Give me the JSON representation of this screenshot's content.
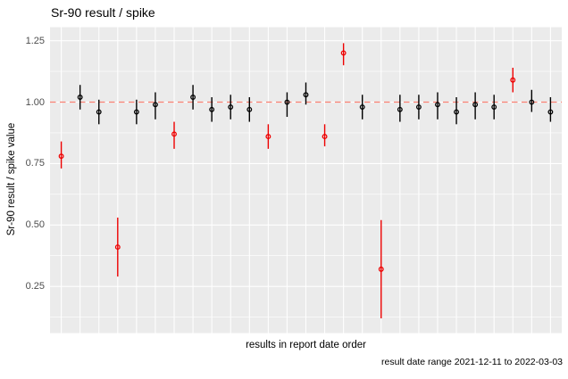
{
  "title": "Sr-90 result / spike",
  "caption": "result date range 2021-12-11 to 2022-03-03",
  "colors": {
    "panel_bg": "#EBEBEB",
    "grid": "#FFFFFF",
    "reference_line": "#FA8072",
    "normal_point": "#000000",
    "flagged_point": "#EE0000",
    "tick_label": "#4D4D4D"
  },
  "chart_data": {
    "type": "scatter",
    "subtype": "pointrange-with-error-bars",
    "title": "Sr-90 result / spike",
    "xlabel": "results in report date order",
    "ylabel": "Sr-90 result / spike value",
    "caption": "result date range 2021-12-11 to 2022-03-03",
    "ylim": [
      0.06,
      1.305
    ],
    "yticks": [
      0.25,
      0.5,
      0.75,
      1.0,
      1.25
    ],
    "ytick_labels": [
      "0.25",
      "0.50",
      "0.75",
      "1.00",
      "1.25"
    ],
    "yticks_minor": [
      0.125,
      0.375,
      0.625,
      0.875,
      1.125
    ],
    "x_axis": "discrete index 1-27, one vertical gridline per result, no x tick labels",
    "grid": "on",
    "legend": "none",
    "reference_line": {
      "y": 1.0,
      "style": "dashed",
      "color": "#FA8072"
    },
    "points": [
      {
        "i": 1,
        "value": 0.78,
        "lo": 0.73,
        "hi": 0.84,
        "flag": "red"
      },
      {
        "i": 2,
        "value": 1.02,
        "lo": 0.97,
        "hi": 1.07,
        "flag": "black"
      },
      {
        "i": 3,
        "value": 0.96,
        "lo": 0.91,
        "hi": 1.01,
        "flag": "black"
      },
      {
        "i": 4,
        "value": 0.41,
        "lo": 0.29,
        "hi": 0.53,
        "flag": "red"
      },
      {
        "i": 5,
        "value": 0.96,
        "lo": 0.91,
        "hi": 1.01,
        "flag": "black"
      },
      {
        "i": 6,
        "value": 0.99,
        "lo": 0.93,
        "hi": 1.04,
        "flag": "black"
      },
      {
        "i": 7,
        "value": 0.87,
        "lo": 0.81,
        "hi": 0.92,
        "flag": "red"
      },
      {
        "i": 8,
        "value": 1.02,
        "lo": 0.97,
        "hi": 1.07,
        "flag": "black"
      },
      {
        "i": 9,
        "value": 0.97,
        "lo": 0.92,
        "hi": 1.02,
        "flag": "black"
      },
      {
        "i": 10,
        "value": 0.98,
        "lo": 0.93,
        "hi": 1.03,
        "flag": "black"
      },
      {
        "i": 11,
        "value": 0.97,
        "lo": 0.92,
        "hi": 1.02,
        "flag": "black"
      },
      {
        "i": 12,
        "value": 0.86,
        "lo": 0.81,
        "hi": 0.91,
        "flag": "red"
      },
      {
        "i": 13,
        "value": 1.0,
        "lo": 0.94,
        "hi": 1.04,
        "flag": "black"
      },
      {
        "i": 14,
        "value": 1.03,
        "lo": 0.99,
        "hi": 1.08,
        "flag": "black"
      },
      {
        "i": 15,
        "value": 0.86,
        "lo": 0.82,
        "hi": 0.91,
        "flag": "red"
      },
      {
        "i": 16,
        "value": 1.2,
        "lo": 1.15,
        "hi": 1.24,
        "flag": "red"
      },
      {
        "i": 17,
        "value": 0.98,
        "lo": 0.93,
        "hi": 1.03,
        "flag": "black"
      },
      {
        "i": 18,
        "value": 0.32,
        "lo": 0.12,
        "hi": 0.52,
        "flag": "red"
      },
      {
        "i": 19,
        "value": 0.97,
        "lo": 0.92,
        "hi": 1.03,
        "flag": "black"
      },
      {
        "i": 20,
        "value": 0.98,
        "lo": 0.93,
        "hi": 1.03,
        "flag": "black"
      },
      {
        "i": 21,
        "value": 0.99,
        "lo": 0.93,
        "hi": 1.04,
        "flag": "black"
      },
      {
        "i": 22,
        "value": 0.96,
        "lo": 0.91,
        "hi": 1.02,
        "flag": "black"
      },
      {
        "i": 23,
        "value": 0.99,
        "lo": 0.93,
        "hi": 1.04,
        "flag": "black"
      },
      {
        "i": 24,
        "value": 0.98,
        "lo": 0.93,
        "hi": 1.03,
        "flag": "black"
      },
      {
        "i": 25,
        "value": 1.09,
        "lo": 1.04,
        "hi": 1.14,
        "flag": "red"
      },
      {
        "i": 26,
        "value": 1.0,
        "lo": 0.96,
        "hi": 1.05,
        "flag": "black"
      },
      {
        "i": 27,
        "value": 0.96,
        "lo": 0.92,
        "hi": 1.02,
        "flag": "black"
      }
    ]
  }
}
